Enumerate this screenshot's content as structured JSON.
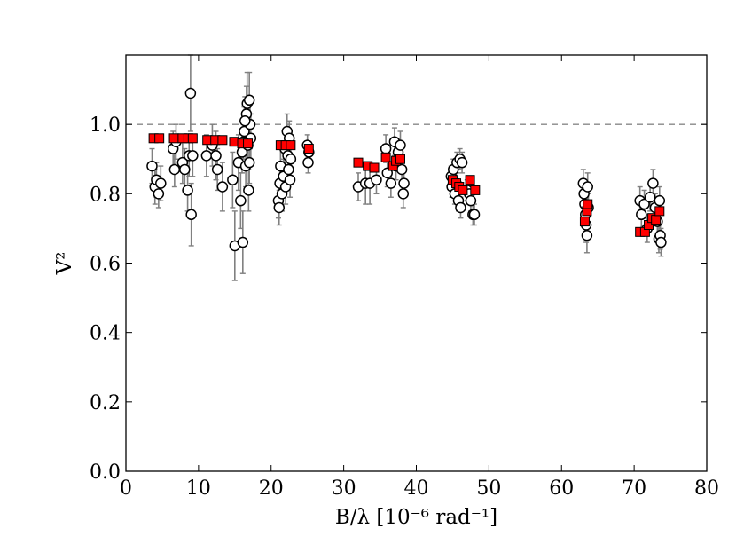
{
  "chart_data": {
    "type": "scatter",
    "xlabel": "B/λ [10⁻⁶ rad⁻¹]",
    "ylabel": "V²",
    "xlim": [
      0,
      80
    ],
    "ylim": [
      0.0,
      1.2
    ],
    "xticks": [
      0,
      10,
      20,
      30,
      40,
      50,
      60,
      70,
      80
    ],
    "yticks": [
      0.0,
      0.2,
      0.4,
      0.6,
      0.8,
      1.0
    ],
    "xtick_labels": [
      "0",
      "10",
      "20",
      "30",
      "40",
      "50",
      "60",
      "70",
      "80"
    ],
    "ytick_labels": [
      "0.0",
      "0.2",
      "0.4",
      "0.6",
      "0.8",
      "1.0"
    ],
    "grid": false,
    "reference_line": {
      "y": 1.0,
      "style": "dashed",
      "color": "#888888"
    },
    "colors": {
      "observed_fill": "#ffffff",
      "model_fill": "#ff0000",
      "errorbar": "#808080",
      "edge": "#000000"
    },
    "series": [
      {
        "marker": "circle",
        "points": [
          {
            "x": 3.6,
            "y": 0.88,
            "err": 0.05
          },
          {
            "x": 4.0,
            "y": 0.82,
            "err": 0.05
          },
          {
            "x": 4.2,
            "y": 0.84,
            "err": 0.05
          },
          {
            "x": 4.5,
            "y": 0.8,
            "err": 0.04
          },
          {
            "x": 4.8,
            "y": 0.83,
            "err": 0.05
          },
          {
            "x": 6.5,
            "y": 0.93,
            "err": 0.05
          },
          {
            "x": 6.7,
            "y": 0.87,
            "err": 0.05
          },
          {
            "x": 6.9,
            "y": 0.95,
            "err": 0.05
          },
          {
            "x": 7.8,
            "y": 0.89,
            "err": 0.06
          },
          {
            "x": 8.1,
            "y": 0.87,
            "err": 0.06
          },
          {
            "x": 8.5,
            "y": 0.81,
            "err": 0.06
          },
          {
            "x": 8.7,
            "y": 0.91,
            "err": 0.06
          },
          {
            "x": 8.9,
            "y": 1.09,
            "err": 0.11
          },
          {
            "x": 9.0,
            "y": 0.74,
            "err": 0.09
          },
          {
            "x": 9.2,
            "y": 0.91,
            "err": 0.06
          },
          {
            "x": 11.1,
            "y": 0.91,
            "err": 0.06
          },
          {
            "x": 11.9,
            "y": 0.94,
            "err": 0.06
          },
          {
            "x": 12.4,
            "y": 0.91,
            "err": 0.07
          },
          {
            "x": 12.6,
            "y": 0.87,
            "err": 0.06
          },
          {
            "x": 13.3,
            "y": 0.82,
            "err": 0.07
          },
          {
            "x": 14.7,
            "y": 0.84,
            "err": 0.08
          },
          {
            "x": 15.0,
            "y": 0.65,
            "err": 0.1
          },
          {
            "x": 15.5,
            "y": 0.89,
            "err": 0.08
          },
          {
            "x": 15.8,
            "y": 0.78,
            "err": 0.08
          },
          {
            "x": 16.0,
            "y": 0.92,
            "err": 0.06
          },
          {
            "x": 16.1,
            "y": 0.66,
            "err": 0.09
          },
          {
            "x": 16.3,
            "y": 0.98,
            "err": 0.07
          },
          {
            "x": 16.5,
            "y": 0.88,
            "err": 0.06
          },
          {
            "x": 16.6,
            "y": 1.03,
            "err": 0.08
          },
          {
            "x": 16.7,
            "y": 1.06,
            "err": 0.09
          },
          {
            "x": 16.8,
            "y": 0.94,
            "err": 0.06
          },
          {
            "x": 16.9,
            "y": 0.81,
            "err": 0.06
          },
          {
            "x": 17.0,
            "y": 1.07,
            "err": 0.08
          },
          {
            "x": 17.1,
            "y": 1.0,
            "err": 0.07
          },
          {
            "x": 17.2,
            "y": 0.96,
            "err": 0.07
          },
          {
            "x": 17.0,
            "y": 0.89,
            "err": 0.06
          },
          {
            "x": 16.4,
            "y": 1.01,
            "err": 0.07
          },
          {
            "x": 16.2,
            "y": 0.95,
            "err": 0.05
          },
          {
            "x": 21.0,
            "y": 0.78,
            "err": 0.05
          },
          {
            "x": 21.1,
            "y": 0.76,
            "err": 0.05
          },
          {
            "x": 21.2,
            "y": 0.83,
            "err": 0.05
          },
          {
            "x": 21.3,
            "y": 0.88,
            "err": 0.05
          },
          {
            "x": 21.5,
            "y": 0.8,
            "err": 0.05
          },
          {
            "x": 21.7,
            "y": 0.85,
            "err": 0.05
          },
          {
            "x": 21.9,
            "y": 0.93,
            "err": 0.05
          },
          {
            "x": 22.0,
            "y": 0.82,
            "err": 0.05
          },
          {
            "x": 22.2,
            "y": 0.98,
            "err": 0.05
          },
          {
            "x": 22.3,
            "y": 0.91,
            "err": 0.05
          },
          {
            "x": 22.4,
            "y": 0.87,
            "err": 0.05
          },
          {
            "x": 22.5,
            "y": 0.96,
            "err": 0.05
          },
          {
            "x": 22.6,
            "y": 0.84,
            "err": 0.05
          },
          {
            "x": 22.7,
            "y": 0.9,
            "err": 0.05
          },
          {
            "x": 25.0,
            "y": 0.94,
            "err": 0.03
          },
          {
            "x": 25.1,
            "y": 0.89,
            "err": 0.03
          },
          {
            "x": 25.2,
            "y": 0.92,
            "err": 0.03
          },
          {
            "x": 32.0,
            "y": 0.82,
            "err": 0.04
          },
          {
            "x": 33.0,
            "y": 0.83,
            "err": 0.06
          },
          {
            "x": 33.6,
            "y": 0.83,
            "err": 0.06
          },
          {
            "x": 34.5,
            "y": 0.84,
            "err": 0.04
          },
          {
            "x": 35.8,
            "y": 0.93,
            "err": 0.04
          },
          {
            "x": 36.0,
            "y": 0.86,
            "err": 0.04
          },
          {
            "x": 36.5,
            "y": 0.83,
            "err": 0.04
          },
          {
            "x": 37.0,
            "y": 0.95,
            "err": 0.04
          },
          {
            "x": 37.2,
            "y": 0.88,
            "err": 0.04
          },
          {
            "x": 37.5,
            "y": 0.92,
            "err": 0.04
          },
          {
            "x": 37.8,
            "y": 0.94,
            "err": 0.04
          },
          {
            "x": 38.0,
            "y": 0.87,
            "err": 0.04
          },
          {
            "x": 38.2,
            "y": 0.8,
            "err": 0.04
          },
          {
            "x": 38.3,
            "y": 0.83,
            "err": 0.04
          },
          {
            "x": 44.8,
            "y": 0.85,
            "err": 0.03
          },
          {
            "x": 44.9,
            "y": 0.82,
            "err": 0.03
          },
          {
            "x": 45.1,
            "y": 0.87,
            "err": 0.03
          },
          {
            "x": 45.3,
            "y": 0.8,
            "err": 0.03
          },
          {
            "x": 45.5,
            "y": 0.83,
            "err": 0.03
          },
          {
            "x": 45.6,
            "y": 0.89,
            "err": 0.03
          },
          {
            "x": 45.8,
            "y": 0.78,
            "err": 0.03
          },
          {
            "x": 46.0,
            "y": 0.9,
            "err": 0.03
          },
          {
            "x": 46.1,
            "y": 0.76,
            "err": 0.03
          },
          {
            "x": 46.3,
            "y": 0.89,
            "err": 0.03
          },
          {
            "x": 47.0,
            "y": 0.81,
            "err": 0.03
          },
          {
            "x": 47.3,
            "y": 0.8,
            "err": 0.03
          },
          {
            "x": 47.5,
            "y": 0.78,
            "err": 0.03
          },
          {
            "x": 47.8,
            "y": 0.74,
            "err": 0.03
          },
          {
            "x": 48.0,
            "y": 0.74,
            "err": 0.03
          },
          {
            "x": 63.0,
            "y": 0.83,
            "err": 0.04
          },
          {
            "x": 63.1,
            "y": 0.8,
            "err": 0.04
          },
          {
            "x": 63.2,
            "y": 0.77,
            "err": 0.04
          },
          {
            "x": 63.3,
            "y": 0.74,
            "err": 0.04
          },
          {
            "x": 63.4,
            "y": 0.71,
            "err": 0.05
          },
          {
            "x": 63.5,
            "y": 0.68,
            "err": 0.05
          },
          {
            "x": 63.6,
            "y": 0.82,
            "err": 0.04
          },
          {
            "x": 63.7,
            "y": 0.76,
            "err": 0.04
          },
          {
            "x": 70.8,
            "y": 0.78,
            "err": 0.04
          },
          {
            "x": 71.0,
            "y": 0.74,
            "err": 0.04
          },
          {
            "x": 71.4,
            "y": 0.77,
            "err": 0.04
          },
          {
            "x": 71.8,
            "y": 0.7,
            "err": 0.04
          },
          {
            "x": 72.2,
            "y": 0.79,
            "err": 0.04
          },
          {
            "x": 72.6,
            "y": 0.83,
            "err": 0.04
          },
          {
            "x": 72.9,
            "y": 0.76,
            "err": 0.04
          },
          {
            "x": 73.2,
            "y": 0.72,
            "err": 0.04
          },
          {
            "x": 73.4,
            "y": 0.67,
            "err": 0.04
          },
          {
            "x": 73.5,
            "y": 0.78,
            "err": 0.04
          },
          {
            "x": 73.6,
            "y": 0.68,
            "err": 0.04
          },
          {
            "x": 73.7,
            "y": 0.66,
            "err": 0.04
          }
        ]
      },
      {
        "marker": "square",
        "points": [
          {
            "x": 3.8,
            "y": 0.96
          },
          {
            "x": 4.6,
            "y": 0.96
          },
          {
            "x": 6.6,
            "y": 0.96
          },
          {
            "x": 7.8,
            "y": 0.96
          },
          {
            "x": 8.6,
            "y": 0.96
          },
          {
            "x": 9.2,
            "y": 0.96
          },
          {
            "x": 11.2,
            "y": 0.955
          },
          {
            "x": 12.3,
            "y": 0.955
          },
          {
            "x": 13.3,
            "y": 0.955
          },
          {
            "x": 14.9,
            "y": 0.95
          },
          {
            "x": 16.0,
            "y": 0.945
          },
          {
            "x": 16.8,
            "y": 0.945
          },
          {
            "x": 21.3,
            "y": 0.94
          },
          {
            "x": 22.0,
            "y": 0.94
          },
          {
            "x": 22.7,
            "y": 0.94
          },
          {
            "x": 25.2,
            "y": 0.93
          },
          {
            "x": 32.0,
            "y": 0.89
          },
          {
            "x": 33.3,
            "y": 0.88
          },
          {
            "x": 34.2,
            "y": 0.875
          },
          {
            "x": 35.8,
            "y": 0.905
          },
          {
            "x": 36.8,
            "y": 0.88
          },
          {
            "x": 37.2,
            "y": 0.895
          },
          {
            "x": 37.8,
            "y": 0.9
          },
          {
            "x": 45.0,
            "y": 0.84
          },
          {
            "x": 45.5,
            "y": 0.83
          },
          {
            "x": 45.9,
            "y": 0.82
          },
          {
            "x": 46.4,
            "y": 0.81
          },
          {
            "x": 47.4,
            "y": 0.84
          },
          {
            "x": 48.1,
            "y": 0.81
          },
          {
            "x": 63.2,
            "y": 0.72
          },
          {
            "x": 63.5,
            "y": 0.75
          },
          {
            "x": 63.6,
            "y": 0.77
          },
          {
            "x": 70.8,
            "y": 0.69
          },
          {
            "x": 71.5,
            "y": 0.69
          },
          {
            "x": 72.0,
            "y": 0.71
          },
          {
            "x": 72.5,
            "y": 0.73
          },
          {
            "x": 73.0,
            "y": 0.725
          },
          {
            "x": 73.5,
            "y": 0.75
          }
        ]
      }
    ]
  }
}
